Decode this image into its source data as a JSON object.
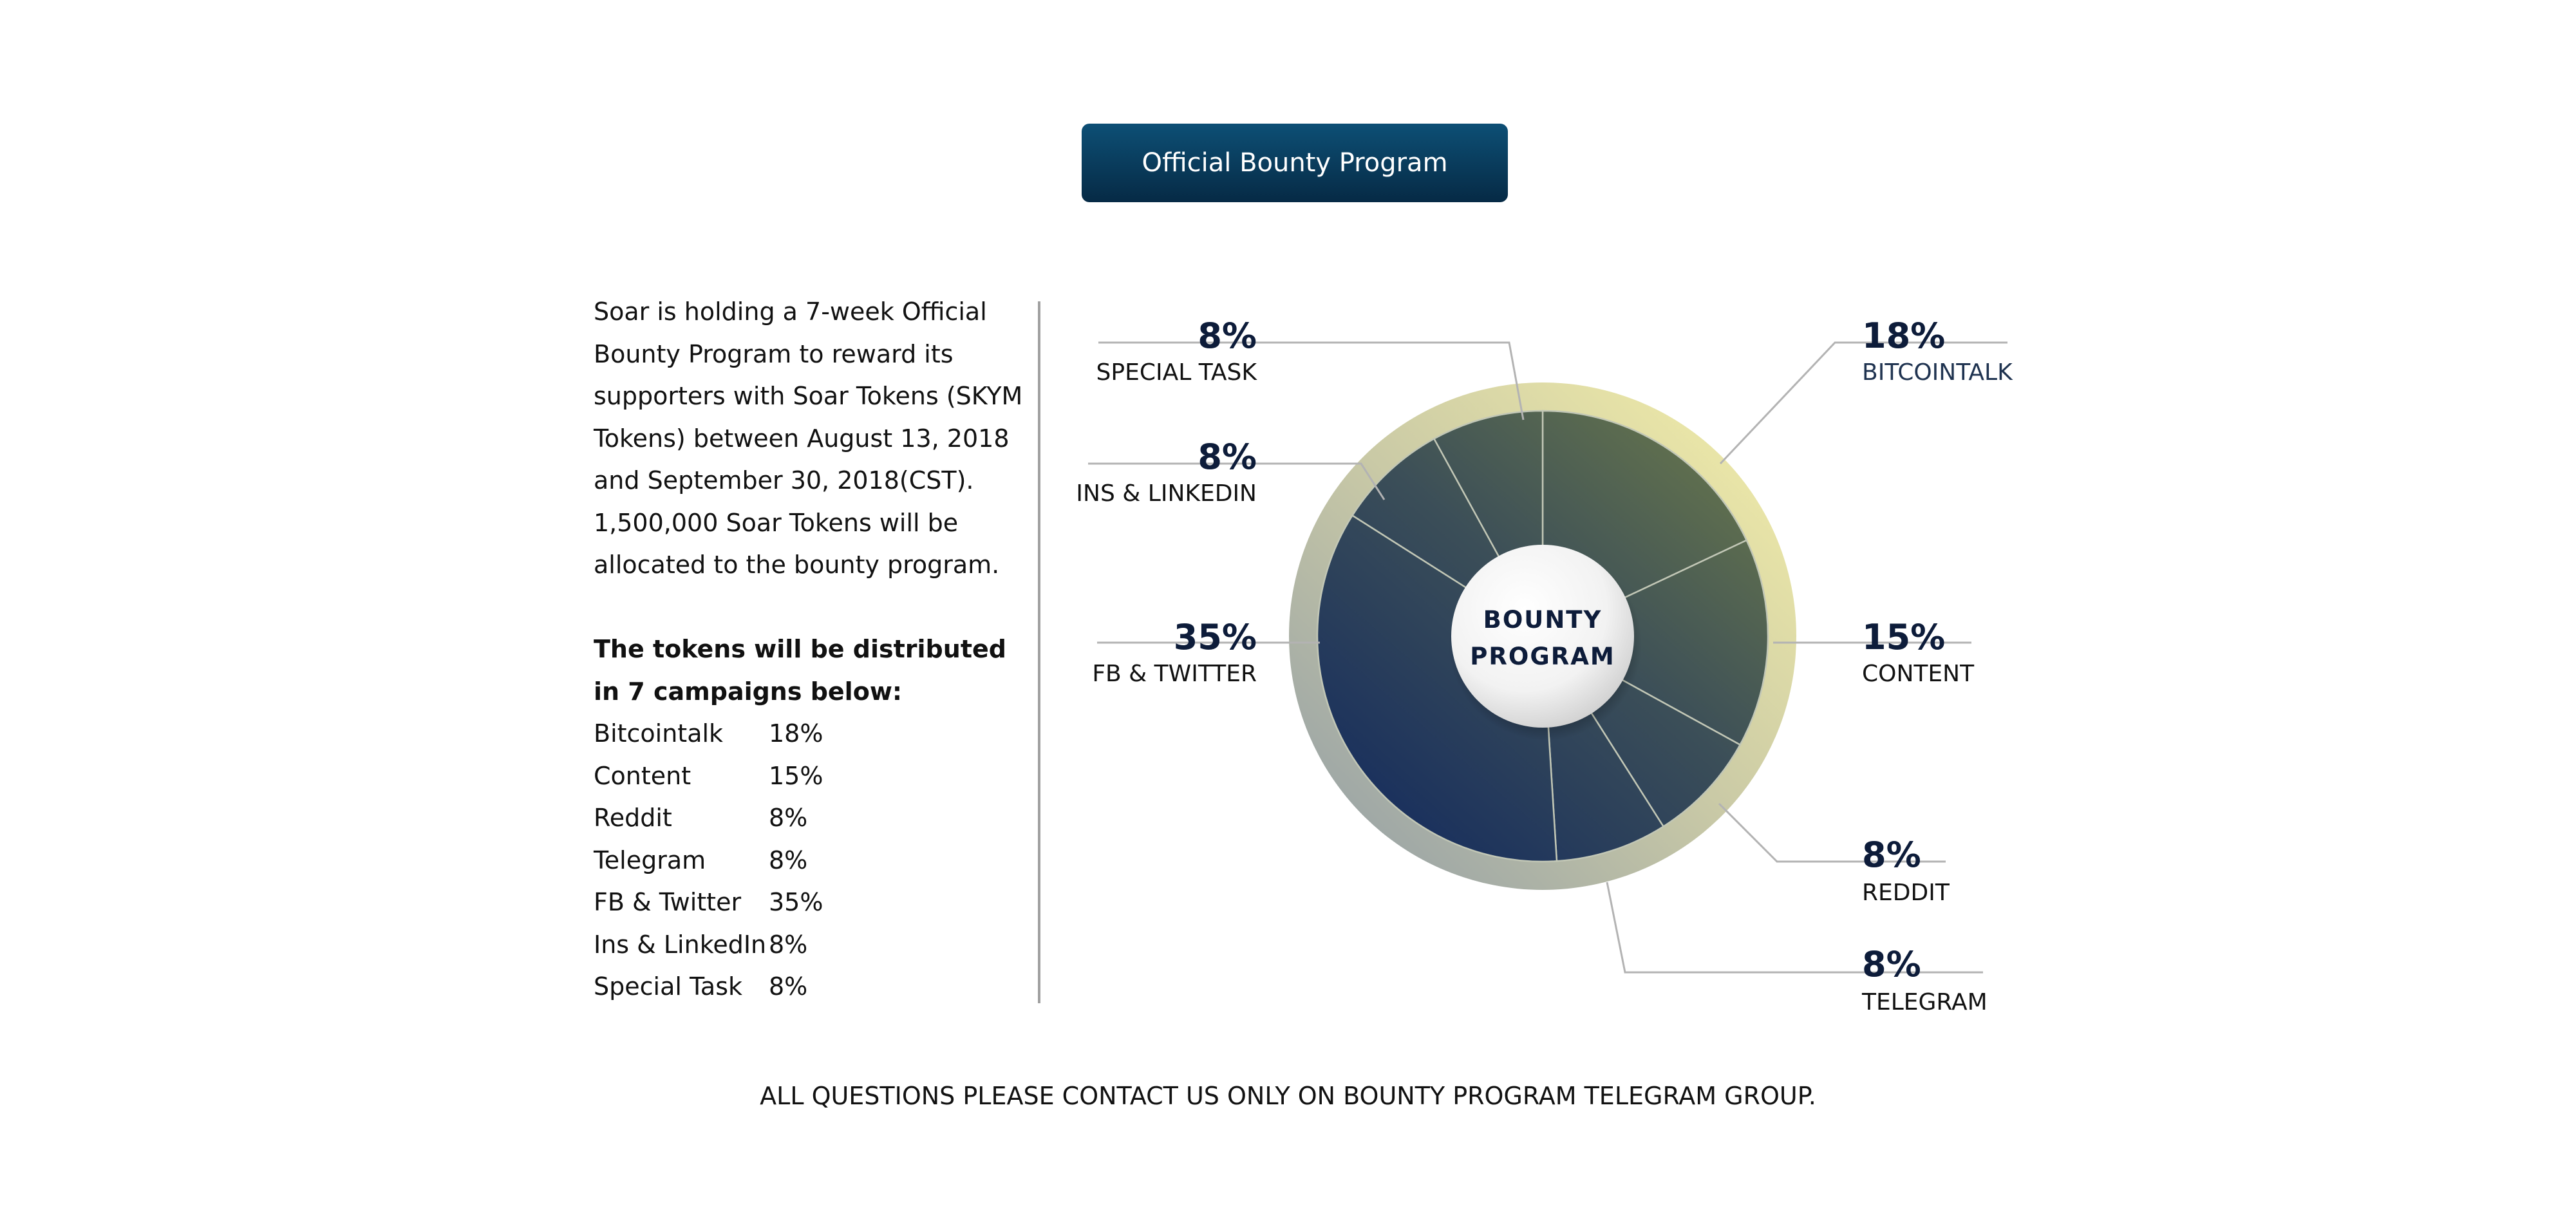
{
  "header": {
    "button_label": "Official Bounty Program"
  },
  "intro": {
    "text": "Soar is holding a 7-week Official Bounty Program to reward its supporters with Soar Tokens (SKYM Tokens) between August 13, 2018 and September 30, 2018(CST). 1,500,000 Soar Tokens will be allocated to the bounty program."
  },
  "distribution": {
    "title": "The tokens will be distributed in 7 campaigns below:",
    "rows": [
      {
        "name": "Bitcointalk",
        "value": "18%"
      },
      {
        "name": "Content",
        "value": "15%"
      },
      {
        "name": "Reddit",
        "value": "8%"
      },
      {
        "name": "Telegram",
        "value": "8%"
      },
      {
        "name": "FB & Twitter",
        "value": "35%"
      },
      {
        "name": "Ins & LinkedIn",
        "value": "8%"
      },
      {
        "name": "Special Task",
        "value": "8%"
      }
    ]
  },
  "chart_data": {
    "type": "pie",
    "title": "",
    "center_label": [
      "BOUNTY",
      "PROGRAM"
    ],
    "slices": [
      {
        "label": "BITCOINTALK",
        "value": 18,
        "display": "18%"
      },
      {
        "label": "CONTENT",
        "value": 15,
        "display": "15%"
      },
      {
        "label": "REDDIT",
        "value": 8,
        "display": "8%"
      },
      {
        "label": "TELEGRAM",
        "value": 8,
        "display": "8%"
      },
      {
        "label": "FB & TWITTER",
        "value": 35,
        "display": "35%"
      },
      {
        "label": "INS & LINKEDIN",
        "value": 8,
        "display": "8%"
      },
      {
        "label": "SPECIAL TASK",
        "value": 8,
        "display": "8%"
      }
    ],
    "colors": {
      "navy": "#162d57",
      "olive": "#6b7a4c",
      "label": "#0d1c3a",
      "ring_light": "#f3eeaa",
      "ring_dark": "#8f9ba6"
    }
  },
  "footer": {
    "text": "ALL QUESTIONS PLEASE CONTACT US ONLY ON BOUNTY PROGRAM TELEGRAM GROUP."
  }
}
